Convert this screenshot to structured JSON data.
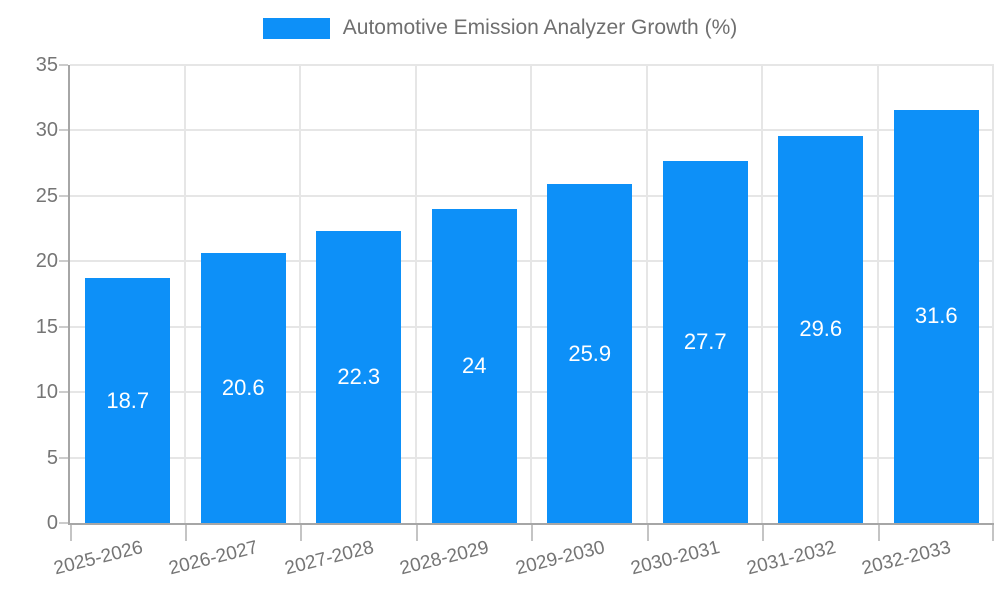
{
  "legend": {
    "label": "Automotive Emission Analyzer Growth (%)",
    "position": "top"
  },
  "chart_data": {
    "type": "bar",
    "title": "Automotive Emission Analyzer Growth (%)",
    "series_name": "Automotive Emission Analyzer Growth (%)",
    "categories": [
      "2025-2026",
      "2026-2027",
      "2027-2028",
      "2028-2029",
      "2029-2030",
      "2030-2031",
      "2031-2032",
      "2032-2033"
    ],
    "values": [
      18.7,
      20.6,
      22.3,
      24,
      25.9,
      27.7,
      29.6,
      31.6
    ],
    "value_labels": [
      "18.7",
      "20.6",
      "22.3",
      "24",
      "25.9",
      "27.7",
      "29.6",
      "31.6"
    ],
    "xlabel": "",
    "ylabel": "",
    "ylim": [
      0,
      35
    ],
    "y_ticks": [
      0,
      5,
      10,
      15,
      20,
      25,
      30,
      35
    ],
    "grid": true,
    "legend_position": "top",
    "colors": {
      "bar": "#0d90f8",
      "grid": "#e6e6e6",
      "axis": "#a6a6a6",
      "tick_text": "#757575",
      "legend_text": "#6f6f6f",
      "value_text": "#ffffff",
      "background": "#ffffff"
    }
  }
}
